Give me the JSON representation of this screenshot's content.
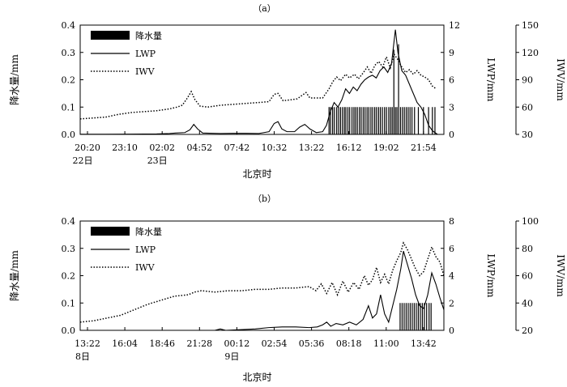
{
  "chart_data": [
    {
      "type": "line",
      "panel_label": "（a）",
      "xlabel": "北京时",
      "ylabel_left": "降水量/mm",
      "ylabel_right1": "LWP/mm",
      "ylabel_right2": "IWV/mm",
      "x_tick_labels": [
        {
          "time": "20:20",
          "date": "22日"
        },
        {
          "time": "23:10",
          "date": ""
        },
        {
          "time": "02:02",
          "date": "23日"
        },
        {
          "time": "04:52",
          "date": ""
        },
        {
          "time": "07:42",
          "date": ""
        },
        {
          "time": "10:32",
          "date": ""
        },
        {
          "time": "13:22",
          "date": ""
        },
        {
          "time": "16:12",
          "date": ""
        },
        {
          "time": "19:02",
          "date": ""
        },
        {
          "time": "21:54",
          "date": ""
        }
      ],
      "x_range_hours": [
        0,
        28.5
      ],
      "y_left": {
        "range": [
          0,
          0.4
        ],
        "ticks": [
          "0.0",
          "0.1",
          "0.2",
          "0.3",
          "0.4"
        ]
      },
      "y_right1": {
        "range": [
          0,
          12
        ],
        "ticks": [
          "0",
          "3",
          "6",
          "9",
          "12"
        ]
      },
      "y_right2": {
        "range": [
          30,
          150
        ],
        "ticks": [
          "30",
          "60",
          "90",
          "120",
          "150"
        ]
      },
      "legend": {
        "placement": "top-left",
        "precip": "降水量",
        "lwp": "LWP",
        "iwv": "IWV"
      },
      "series": {
        "precip_value": 0.1,
        "precip_tall": [
          [
            24.58,
            0.31
          ],
          [
            24.95,
            0.33
          ]
        ],
        "precip_hours": [
          19.5,
          19.62,
          19.78,
          19.92,
          20.1,
          20.25,
          20.4,
          20.55,
          20.7,
          20.82,
          20.98,
          21.12,
          21.3,
          21.45,
          21.58,
          21.72,
          21.88,
          22.02,
          22.18,
          22.32,
          22.48,
          22.62,
          22.78,
          22.92,
          23.08,
          23.22,
          23.38,
          23.52,
          23.68,
          23.85,
          24.0,
          24.18,
          24.32,
          24.45,
          24.7,
          24.82,
          25.1,
          25.25,
          25.4,
          25.55,
          25.7,
          25.85,
          26.0,
          26.2,
          26.5,
          26.9,
          27.3,
          27.6,
          27.8
        ],
        "lwp": [
          [
            0,
            0.02
          ],
          [
            2,
            0.02
          ],
          [
            4,
            0.03
          ],
          [
            6,
            0.05
          ],
          [
            7,
            0.1
          ],
          [
            7.5,
            0.15
          ],
          [
            8.2,
            0.2
          ],
          [
            8.6,
            0.5
          ],
          [
            8.9,
            1.1
          ],
          [
            9.2,
            0.6
          ],
          [
            9.6,
            0.15
          ],
          [
            11,
            0.1
          ],
          [
            12,
            0.12
          ],
          [
            13,
            0.12
          ],
          [
            14,
            0.1
          ],
          [
            14.8,
            0.3
          ],
          [
            15.2,
            1.2
          ],
          [
            15.5,
            1.4
          ],
          [
            15.8,
            0.6
          ],
          [
            16.2,
            0.3
          ],
          [
            16.8,
            0.3
          ],
          [
            17.2,
            0.8
          ],
          [
            17.6,
            1.1
          ],
          [
            18.0,
            0.6
          ],
          [
            18.5,
            0.2
          ],
          [
            19.0,
            0.3
          ],
          [
            19.3,
            1.0
          ],
          [
            19.6,
            2.5
          ],
          [
            19.9,
            3.5
          ],
          [
            20.2,
            3.0
          ],
          [
            20.5,
            3.8
          ],
          [
            20.8,
            5.0
          ],
          [
            21.1,
            4.5
          ],
          [
            21.4,
            5.2
          ],
          [
            21.7,
            4.8
          ],
          [
            22.0,
            5.5
          ],
          [
            22.3,
            6.0
          ],
          [
            22.6,
            6.3
          ],
          [
            22.9,
            6.5
          ],
          [
            23.2,
            6.2
          ],
          [
            23.5,
            7.0
          ],
          [
            23.8,
            7.4
          ],
          [
            24.1,
            6.8
          ],
          [
            24.4,
            7.8
          ],
          [
            24.7,
            11.5
          ],
          [
            24.9,
            9.0
          ],
          [
            25.2,
            7.0
          ],
          [
            25.5,
            6.5
          ],
          [
            25.8,
            5.5
          ],
          [
            26.1,
            4.5
          ],
          [
            26.4,
            3.5
          ],
          [
            26.7,
            3.0
          ],
          [
            27.0,
            2.2
          ],
          [
            27.3,
            1.0
          ],
          [
            27.6,
            0.4
          ],
          [
            28.0,
            0.0
          ]
        ],
        "iwv": [
          [
            0,
            47
          ],
          [
            1,
            48
          ],
          [
            2,
            49
          ],
          [
            3,
            52
          ],
          [
            4,
            54
          ],
          [
            5,
            55
          ],
          [
            6,
            56
          ],
          [
            7,
            58
          ],
          [
            7.6,
            60
          ],
          [
            8.0,
            62
          ],
          [
            8.4,
            70
          ],
          [
            8.7,
            77
          ],
          [
            9.0,
            68
          ],
          [
            9.4,
            61
          ],
          [
            10,
            60
          ],
          [
            11,
            62
          ],
          [
            12,
            63
          ],
          [
            13,
            64
          ],
          [
            14,
            65
          ],
          [
            14.8,
            66
          ],
          [
            15.2,
            74
          ],
          [
            15.5,
            75
          ],
          [
            15.9,
            67
          ],
          [
            16.5,
            68
          ],
          [
            17.0,
            69
          ],
          [
            17.4,
            73
          ],
          [
            17.7,
            76
          ],
          [
            18.0,
            70
          ],
          [
            19.0,
            70
          ],
          [
            19.5,
            80
          ],
          [
            19.8,
            88
          ],
          [
            20.1,
            93
          ],
          [
            20.4,
            89
          ],
          [
            20.8,
            96
          ],
          [
            21.1,
            92
          ],
          [
            21.5,
            96
          ],
          [
            21.8,
            91
          ],
          [
            22.2,
            98
          ],
          [
            22.5,
            104
          ],
          [
            22.8,
            97
          ],
          [
            23.1,
            106
          ],
          [
            23.4,
            110
          ],
          [
            23.7,
            104
          ],
          [
            24.0,
            115
          ],
          [
            24.3,
            103
          ],
          [
            24.6,
            118
          ],
          [
            24.9,
            112
          ],
          [
            25.2,
            104
          ],
          [
            25.5,
            98
          ],
          [
            25.8,
            101
          ],
          [
            26.1,
            96
          ],
          [
            26.4,
            100
          ],
          [
            26.7,
            95
          ],
          [
            27.0,
            93
          ],
          [
            27.3,
            90
          ],
          [
            27.6,
            83
          ],
          [
            27.9,
            80
          ]
        ]
      }
    },
    {
      "type": "line",
      "panel_label": "（b）",
      "xlabel": "北京时",
      "ylabel_left": "降水量/mm",
      "ylabel_right1": "LWP/mm",
      "ylabel_right2": "IWV/mm",
      "x_tick_labels": [
        {
          "time": "13:22",
          "date": "8日"
        },
        {
          "time": "16:04",
          "date": ""
        },
        {
          "time": "18:46",
          "date": ""
        },
        {
          "time": "21:28",
          "date": ""
        },
        {
          "time": "00:12",
          "date": "9日"
        },
        {
          "time": "02:54",
          "date": ""
        },
        {
          "time": "05:36",
          "date": ""
        },
        {
          "time": "08:18",
          "date": ""
        },
        {
          "time": "11:00",
          "date": ""
        },
        {
          "time": "13:42",
          "date": ""
        }
      ],
      "x_range_hours": [
        0,
        27.0
      ],
      "y_left": {
        "range": [
          0,
          0.4
        ],
        "ticks": [
          "0.0",
          "0.1",
          "0.2",
          "0.3",
          "0.4"
        ]
      },
      "y_right1": {
        "range": [
          0,
          8
        ],
        "ticks": [
          "0",
          "2",
          "4",
          "6",
          "8"
        ]
      },
      "y_right2": {
        "range": [
          20,
          100
        ],
        "ticks": [
          "20",
          "40",
          "60",
          "80",
          "100"
        ]
      },
      "legend": {
        "placement": "top-left",
        "precip": "降水量",
        "lwp": "LWP",
        "iwv": "IWV"
      },
      "series": {
        "precip_value": 0.1,
        "precip_tall": [],
        "precip_hours": [
          23.75,
          23.9,
          24.05,
          24.2,
          24.35,
          24.5,
          24.65,
          24.8,
          24.95,
          25.1,
          25.25,
          25.4,
          25.55,
          25.72,
          25.9,
          26.05
        ],
        "lwp": [
          [
            0,
            0.0
          ],
          [
            5,
            0.0
          ],
          [
            10,
            0.0
          ],
          [
            10.4,
            0.1
          ],
          [
            10.8,
            0.0
          ],
          [
            13,
            0.1
          ],
          [
            14,
            0.2
          ],
          [
            15,
            0.25
          ],
          [
            16,
            0.25
          ],
          [
            17,
            0.2
          ],
          [
            17.6,
            0.25
          ],
          [
            18.0,
            0.4
          ],
          [
            18.3,
            0.6
          ],
          [
            18.6,
            0.3
          ],
          [
            19.0,
            0.5
          ],
          [
            19.5,
            0.4
          ],
          [
            20.0,
            0.6
          ],
          [
            20.5,
            0.4
          ],
          [
            21.0,
            0.8
          ],
          [
            21.4,
            1.8
          ],
          [
            21.7,
            0.9
          ],
          [
            22.0,
            1.2
          ],
          [
            22.3,
            2.6
          ],
          [
            22.6,
            1.2
          ],
          [
            22.9,
            0.6
          ],
          [
            23.2,
            1.8
          ],
          [
            23.5,
            3.0
          ],
          [
            23.8,
            4.5
          ],
          [
            24.0,
            5.8
          ],
          [
            24.3,
            4.8
          ],
          [
            24.6,
            3.8
          ],
          [
            24.9,
            2.6
          ],
          [
            25.2,
            1.8
          ],
          [
            25.5,
            1.6
          ],
          [
            25.8,
            2.6
          ],
          [
            26.1,
            4.2
          ],
          [
            26.4,
            3.4
          ],
          [
            26.7,
            2.4
          ],
          [
            27.0,
            1.5
          ]
        ],
        "iwv": [
          [
            0,
            26
          ],
          [
            1,
            27
          ],
          [
            2,
            29
          ],
          [
            3,
            31
          ],
          [
            4,
            35
          ],
          [
            5,
            39
          ],
          [
            6,
            42
          ],
          [
            7,
            45
          ],
          [
            8,
            46
          ],
          [
            8.5,
            48
          ],
          [
            9,
            49
          ],
          [
            10,
            48
          ],
          [
            11,
            49
          ],
          [
            12,
            49
          ],
          [
            13,
            50
          ],
          [
            14,
            50
          ],
          [
            15,
            51
          ],
          [
            16,
            51
          ],
          [
            17,
            52
          ],
          [
            17.5,
            49
          ],
          [
            17.9,
            54
          ],
          [
            18.3,
            47
          ],
          [
            18.7,
            55
          ],
          [
            19.1,
            46
          ],
          [
            19.5,
            56
          ],
          [
            19.9,
            48
          ],
          [
            20.3,
            55
          ],
          [
            20.7,
            50
          ],
          [
            21.1,
            60
          ],
          [
            21.4,
            53
          ],
          [
            21.7,
            57
          ],
          [
            22.0,
            66
          ],
          [
            22.3,
            55
          ],
          [
            22.6,
            61
          ],
          [
            22.9,
            54
          ],
          [
            23.2,
            64
          ],
          [
            23.5,
            71
          ],
          [
            23.8,
            77
          ],
          [
            24.0,
            84
          ],
          [
            24.3,
            79
          ],
          [
            24.6,
            72
          ],
          [
            24.9,
            65
          ],
          [
            25.2,
            60
          ],
          [
            25.5,
            63
          ],
          [
            25.8,
            72
          ],
          [
            26.1,
            81
          ],
          [
            26.4,
            74
          ],
          [
            26.7,
            70
          ],
          [
            27.0,
            60
          ]
        ]
      }
    }
  ]
}
